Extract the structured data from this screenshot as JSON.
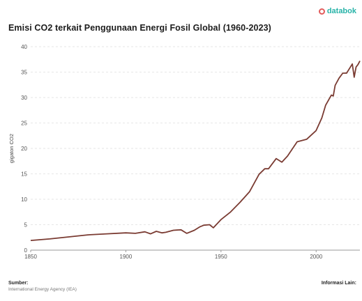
{
  "brand": {
    "name": "databok",
    "icon": "databoks-logo-icon"
  },
  "footer": {
    "source_label": "Sumber:",
    "source_text": "International Energy Agency (IEA)",
    "info_label": "Informasi Lain:"
  },
  "chart_data": {
    "type": "line",
    "title": "Emisi CO2 terkait Penggunaan Energi Fosil Global (1960-2023)",
    "xlabel": "",
    "ylabel": "gigaton CO2",
    "xlim": [
      1850,
      2023
    ],
    "ylim": [
      0,
      40
    ],
    "x_ticks": [
      1850,
      1900,
      1950,
      2000
    ],
    "y_ticks": [
      0,
      5,
      10,
      15,
      20,
      25,
      30,
      35,
      40
    ],
    "grid": true,
    "line_color": "#7a3b32",
    "series": [
      {
        "name": "",
        "x": [
          1850,
          1860,
          1870,
          1880,
          1890,
          1900,
          1905,
          1910,
          1913,
          1916,
          1919,
          1921,
          1925,
          1929,
          1932,
          1936,
          1939,
          1941,
          1944,
          1946,
          1950,
          1955,
          1960,
          1965,
          1970,
          1973,
          1975,
          1979,
          1982,
          1985,
          1990,
          1995,
          2000,
          2003,
          2005,
          2008,
          2009,
          2010,
          2012,
          2014,
          2016,
          2018,
          2019,
          2020,
          2021,
          2022,
          2023
        ],
        "y": [
          1.9,
          2.2,
          2.6,
          3.0,
          3.2,
          3.4,
          3.3,
          3.6,
          3.2,
          3.7,
          3.4,
          3.5,
          3.9,
          4.0,
          3.3,
          3.9,
          4.6,
          4.9,
          5.0,
          4.4,
          6.0,
          7.5,
          9.4,
          11.5,
          14.9,
          16.0,
          16.0,
          18.0,
          17.3,
          18.5,
          21.3,
          21.8,
          23.5,
          26.0,
          28.5,
          30.5,
          30.3,
          32.4,
          33.8,
          34.8,
          34.8,
          36.0,
          36.6,
          34.0,
          36.0,
          36.5,
          37.2
        ]
      }
    ]
  }
}
